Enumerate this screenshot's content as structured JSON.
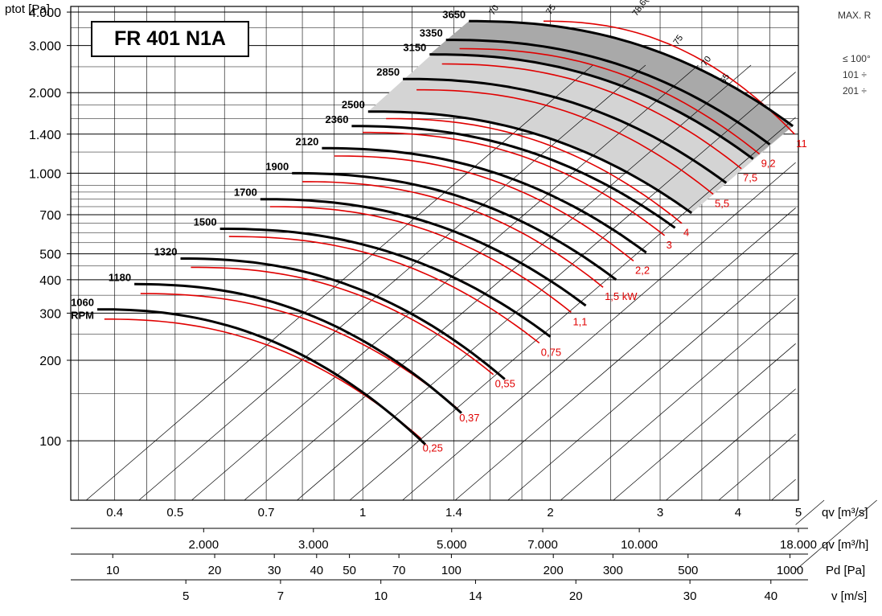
{
  "page": {
    "title": "FR 401 N1A",
    "side_notes": {
      "header": "MAX. R",
      "rows": [
        "≤ 100°",
        "101 ÷",
        "201 ÷"
      ]
    }
  },
  "chart_data": {
    "type": "line",
    "title": "FR 401 N1A",
    "ylabel": "ptot [Pa]",
    "y_scale": "log",
    "x_scale": "log",
    "ylim": [
      60,
      4200
    ],
    "xlim": [
      0.34,
      5.0
    ],
    "y_ticks": [
      {
        "v": 4000,
        "t": "4.000"
      },
      {
        "v": 3000,
        "t": "3.000"
      },
      {
        "v": 2000,
        "t": "2.000"
      },
      {
        "v": 1400,
        "t": "1.400"
      },
      {
        "v": 1000,
        "t": "1.000"
      },
      {
        "v": 700,
        "t": "700"
      },
      {
        "v": 500,
        "t": "500"
      },
      {
        "v": 400,
        "t": "400"
      },
      {
        "v": 300,
        "t": "300"
      },
      {
        "v": 200,
        "t": "200"
      },
      {
        "v": 100,
        "t": "100"
      }
    ],
    "y_minor_gridlines": [
      3500,
      2500,
      1800,
      1600,
      1200,
      900,
      850,
      800,
      750,
      650,
      600,
      550,
      450,
      350,
      250,
      150
    ],
    "x_gridlines": [
      0.35,
      0.4,
      0.45,
      0.5,
      0.6,
      0.7,
      0.8,
      0.9,
      1,
      1.2,
      1.4,
      1.6,
      1.8,
      2,
      2.5,
      3,
      3.5,
      4,
      4.5,
      5
    ],
    "axes": [
      {
        "name": "qv-m3s",
        "label": "qv [m³/s]",
        "ticks": [
          {
            "v": 0.4,
            "t": "0.4"
          },
          {
            "v": 0.5,
            "t": "0.5"
          },
          {
            "v": 0.7,
            "t": "0.7"
          },
          {
            "v": 1,
            "t": "1"
          },
          {
            "v": 1.4,
            "t": "1.4"
          },
          {
            "v": 2,
            "t": "2"
          },
          {
            "v": 3,
            "t": "3"
          },
          {
            "v": 4,
            "t": "4"
          },
          {
            "v": 5,
            "t": "5"
          }
        ]
      },
      {
        "name": "qv-m3h",
        "label": "qv [m³/h]",
        "ticks": [
          {
            "v": 2000,
            "t": "2.000"
          },
          {
            "v": 3000,
            "t": "3.000"
          },
          {
            "v": 5000,
            "t": "5.000"
          },
          {
            "v": 7000,
            "t": "7.000"
          },
          {
            "v": 10000,
            "t": "10.000"
          },
          {
            "v": 18000,
            "t": "18.000"
          }
        ]
      },
      {
        "name": "pd",
        "label": "Pd [Pa]",
        "ticks": [
          {
            "v": 10,
            "t": "10"
          },
          {
            "v": 20,
            "t": "20"
          },
          {
            "v": 30,
            "t": "30"
          },
          {
            "v": 40,
            "t": "40"
          },
          {
            "v": 50,
            "t": "50"
          },
          {
            "v": 70,
            "t": "70"
          },
          {
            "v": 100,
            "t": "100"
          },
          {
            "v": 200,
            "t": "200"
          },
          {
            "v": 300,
            "t": "300"
          },
          {
            "v": 500,
            "t": "500"
          },
          {
            "v": 1000,
            "t": "1000"
          }
        ]
      },
      {
        "name": "v",
        "label": "v [m/s]",
        "ticks": [
          {
            "v": 5,
            "t": "5"
          },
          {
            "v": 7,
            "t": "7"
          },
          {
            "v": 10,
            "t": "10"
          },
          {
            "v": 14,
            "t": "14"
          },
          {
            "v": 20,
            "t": "20"
          },
          {
            "v": 30,
            "t": "30"
          },
          {
            "v": 40,
            "t": "40"
          }
        ]
      }
    ],
    "speeds": [
      {
        "rpm": "1060",
        "unit": "RPM",
        "x0": 0.375,
        "p0": 310,
        "x1": 1.26,
        "p1": 97
      },
      {
        "rpm": "1180",
        "x0": 0.43,
        "p0": 385,
        "x1": 1.44,
        "p1": 127
      },
      {
        "rpm": "1320",
        "x0": 0.51,
        "p0": 480,
        "x1": 1.69,
        "p1": 170
      },
      {
        "rpm": "1500",
        "x0": 0.59,
        "p0": 620,
        "x1": 2.0,
        "p1": 245
      },
      {
        "rpm": "1700",
        "x0": 0.685,
        "p0": 800,
        "x1": 2.28,
        "p1": 320
      },
      {
        "rpm": "1900",
        "x0": 0.77,
        "p0": 1000,
        "x1": 2.55,
        "p1": 400
      },
      {
        "rpm": "2120",
        "x0": 0.86,
        "p0": 1240,
        "x1": 2.85,
        "p1": 505
      },
      {
        "rpm": "2360",
        "x0": 0.96,
        "p0": 1500,
        "x1": 3.17,
        "p1": 625
      },
      {
        "rpm": "2500",
        "x0": 1.02,
        "p0": 1700,
        "x1": 3.37,
        "p1": 710
      },
      {
        "rpm": "2850",
        "x0": 1.16,
        "p0": 2250,
        "x1": 3.83,
        "p1": 920
      },
      {
        "rpm": "3150",
        "x0": 1.28,
        "p0": 2780,
        "x1": 4.23,
        "p1": 1130
      },
      {
        "rpm": "3350",
        "x0": 1.36,
        "p0": 3150,
        "x1": 4.5,
        "p1": 1280
      },
      {
        "rpm": "3650",
        "x0": 1.48,
        "p0": 3700,
        "x1": 4.9,
        "p1": 1500
      }
    ],
    "power_curves": [
      {
        "label": "0,25",
        "x0": 0.385,
        "p0": 285,
        "x1": 1.24,
        "p1": 102
      },
      {
        "label": "0,37",
        "x0": 0.44,
        "p0": 355,
        "x1": 1.42,
        "p1": 132
      },
      {
        "label": "0,55",
        "x0": 0.53,
        "p0": 445,
        "x1": 1.62,
        "p1": 177
      },
      {
        "label": "0,75",
        "x0": 0.61,
        "p0": 580,
        "x1": 1.92,
        "p1": 232
      },
      {
        "label": "1,1",
        "x0": 0.71,
        "p0": 750,
        "x1": 2.16,
        "p1": 302
      },
      {
        "label": "1,5 kW",
        "x0": 0.8,
        "p0": 930,
        "x1": 2.43,
        "p1": 375
      },
      {
        "label": "2,2",
        "x0": 0.9,
        "p0": 1160,
        "x1": 2.72,
        "p1": 470
      },
      {
        "label": "3",
        "x0": 1.0,
        "p0": 1420,
        "x1": 3.05,
        "p1": 585
      },
      {
        "label": "4",
        "x0": 1.09,
        "p0": 1600,
        "x1": 3.25,
        "p1": 650
      },
      {
        "label": "5,5",
        "x0": 1.22,
        "p0": 2050,
        "x1": 3.65,
        "p1": 835
      },
      {
        "label": "7,5",
        "x0": 1.34,
        "p0": 2560,
        "x1": 4.05,
        "p1": 1040
      },
      {
        "label": "9,2",
        "x0": 1.43,
        "p0": 2920,
        "x1": 4.33,
        "p1": 1180
      },
      {
        "label": "11",
        "x0": 1.95,
        "p0": 3700,
        "x1": 4.93,
        "p1": 1400
      }
    ],
    "efficiency_labels": [
      {
        "t": "70",
        "x": 1.62,
        "p": 3880
      },
      {
        "t": "75",
        "x": 2.0,
        "p": 3900
      },
      {
        "t": "78,6(η%)",
        "x": 2.75,
        "p": 3850
      },
      {
        "t": "75",
        "x": 3.2,
        "p": 3000
      },
      {
        "t": "70",
        "x": 3.55,
        "p": 2500
      },
      {
        "t": "65",
        "x": 3.8,
        "p": 2150
      }
    ]
  }
}
